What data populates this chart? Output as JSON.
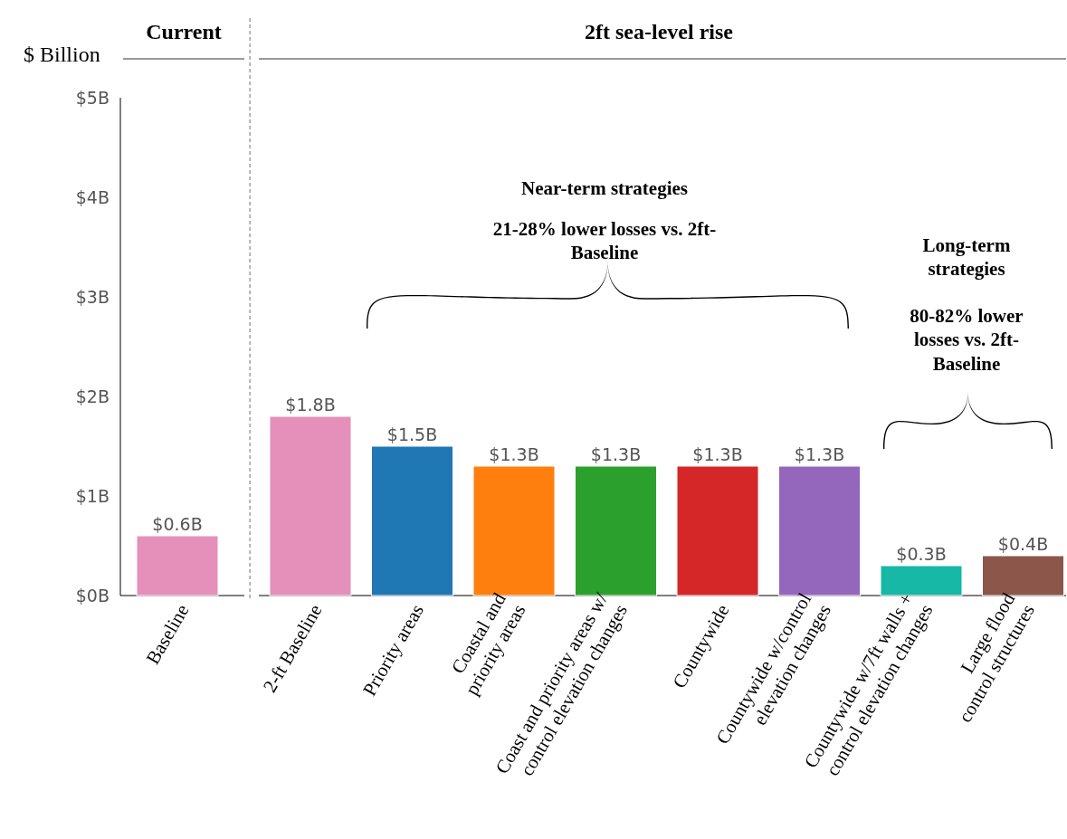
{
  "chart_data": {
    "type": "bar",
    "ylabel": "$ Billion",
    "categories": [
      "Baseline",
      "2-ft Baseline",
      "Priority areas",
      "Coastal and\npriority areas",
      "Coast and priority areas w/\ncontrol elevation changes",
      "Countywide",
      "Countywide w/control\nelevation changes",
      "Countywide w/7ft walls +\ncontrol elevation changes",
      "Large flood\ncontrol structures"
    ],
    "values": [
      0.6,
      1.8,
      1.5,
      1.3,
      1.3,
      1.3,
      1.3,
      0.3,
      0.4
    ],
    "colors": [
      "#e58fbb",
      "#e58fbb",
      "#1f77b4",
      "#ff7f0e",
      "#2ca02c",
      "#d62728",
      "#9467bd",
      "#17b8a6",
      "#8c564b"
    ],
    "value_labels": [
      "$0.6B",
      "$1.8B",
      "$1.5B",
      "$1.3B",
      "$1.3B",
      "$1.3B",
      "$1.3B",
      "$0.3B",
      "$0.4B"
    ],
    "ylim": [
      0,
      5
    ],
    "yticks": [
      {
        "value": 0,
        "label": "$0B"
      },
      {
        "value": 1,
        "label": "$1B"
      },
      {
        "value": 2,
        "label": "$2B"
      },
      {
        "value": 3,
        "label": "$3B"
      },
      {
        "value": 4,
        "label": "$4B"
      },
      {
        "value": 5,
        "label": "$5B"
      }
    ],
    "grid": false,
    "annotations": [
      "Current",
      "2ft sea-level rise",
      "Near-term strategies",
      "21-28% lower losses vs. 2ft-\nBaseline",
      "Long-term\nstrategies",
      "80-82% lower\nlosses vs. 2ft-\nBaseline"
    ]
  }
}
